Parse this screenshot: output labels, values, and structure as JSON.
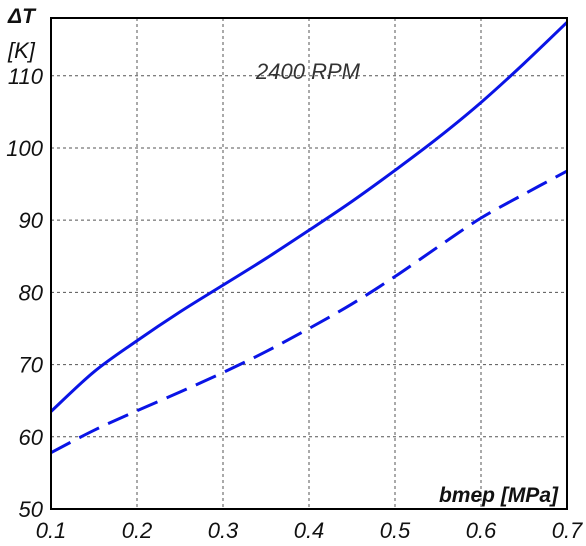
{
  "chart_data": {
    "type": "line",
    "title": "",
    "xlabel": "bmep [MPa]",
    "ylabel_symbol": "ΔT",
    "ylabel_unit": "[K]",
    "annotation": "2400 RPM",
    "xlim": [
      0.1,
      0.7
    ],
    "ylim": [
      50,
      118
    ],
    "x_ticks": [
      0.1,
      0.2,
      0.3,
      0.4,
      0.5,
      0.6,
      0.7
    ],
    "y_ticks": [
      50,
      60,
      70,
      80,
      90,
      100,
      110
    ],
    "grid": true,
    "colors": {
      "line": "#0a14e6",
      "grid": "#555555",
      "frame": "#000000"
    },
    "series": [
      {
        "style": "solid",
        "x": [
          0.1,
          0.15,
          0.2,
          0.25,
          0.3,
          0.35,
          0.4,
          0.45,
          0.5,
          0.55,
          0.6,
          0.65,
          0.7
        ],
        "y": [
          63.5,
          69.0,
          73.3,
          77.3,
          81.0,
          84.7,
          88.6,
          92.6,
          96.9,
          101.4,
          106.3,
          111.7,
          117.4
        ]
      },
      {
        "style": "dashed",
        "x": [
          0.1,
          0.15,
          0.2,
          0.25,
          0.3,
          0.35,
          0.4,
          0.45,
          0.5,
          0.55,
          0.6,
          0.65,
          0.7
        ],
        "y": [
          57.8,
          60.9,
          63.6,
          66.2,
          68.9,
          71.8,
          75.0,
          78.4,
          82.2,
          86.3,
          90.3,
          93.6,
          96.8
        ]
      }
    ]
  }
}
